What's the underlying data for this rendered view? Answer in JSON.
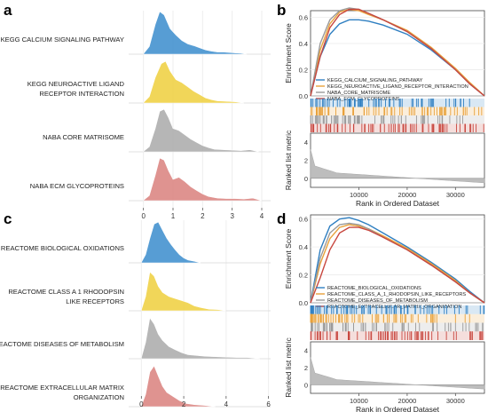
{
  "panels": {
    "a": {
      "label": "a"
    },
    "b": {
      "label": "b"
    },
    "c": {
      "label": "c"
    },
    "d": {
      "label": "d"
    }
  },
  "colors": {
    "blue": "#3a8ccd",
    "yellow": "#eecf3c",
    "gray": "#a9a9a9",
    "red": "#d9807d",
    "gsea_blue": "#2f7fc1",
    "gsea_orange": "#e8a13a",
    "gsea_gray": "#9a9a9a",
    "gsea_red": "#c8473f"
  },
  "chart_data": [
    {
      "panel": "a",
      "type": "area",
      "subtype": "ridgeline",
      "title": "",
      "xlabel": "",
      "xlim": [
        -0.5,
        4.3
      ],
      "xticks": [
        "0",
        "1",
        "2",
        "3",
        "4"
      ],
      "series": [
        {
          "name": "KEGG CALCIUM SIGNALING PATHWAY",
          "color": "#3a8ccd",
          "x": [
            0,
            0.2,
            0.4,
            0.55,
            0.7,
            0.9,
            1.1,
            1.3,
            1.5,
            1.7,
            1.9,
            2.1,
            2.3,
            2.5,
            2.7,
            2.9,
            3.1,
            3.3,
            3.5
          ],
          "density": [
            0.01,
            0.18,
            0.7,
            1.0,
            0.92,
            0.6,
            0.45,
            0.32,
            0.24,
            0.2,
            0.15,
            0.1,
            0.07,
            0.05,
            0.05,
            0.04,
            0.03,
            0.02,
            0.0
          ]
        },
        {
          "name": "KEGG NEUROACTIVE LIGAND RECEPTOR INTERACTION",
          "color": "#eecf3c",
          "x": [
            0,
            0.2,
            0.4,
            0.6,
            0.75,
            0.9,
            1.1,
            1.3,
            1.5,
            1.7,
            1.9,
            2.1,
            2.3,
            2.5,
            2.8,
            3.1,
            3.4
          ],
          "density": [
            0.01,
            0.15,
            0.6,
            0.92,
            0.98,
            0.75,
            0.55,
            0.48,
            0.38,
            0.28,
            0.2,
            0.12,
            0.08,
            0.05,
            0.04,
            0.03,
            0.0
          ]
        },
        {
          "name": "NABA CORE MATRISOME",
          "color": "#a9a9a9",
          "x": [
            0,
            0.2,
            0.4,
            0.55,
            0.7,
            0.85,
            1.0,
            1.2,
            1.4,
            1.6,
            1.8,
            2.0,
            2.2,
            2.4,
            2.7,
            3.0,
            3.3,
            3.6,
            3.9
          ],
          "density": [
            0.01,
            0.12,
            0.55,
            0.95,
            1.0,
            0.8,
            0.55,
            0.5,
            0.4,
            0.3,
            0.22,
            0.15,
            0.1,
            0.06,
            0.05,
            0.04,
            0.03,
            0.05,
            0.0
          ]
        },
        {
          "name": "NABA ECM GLYCOPROTEINS",
          "color": "#d9807d",
          "x": [
            0,
            0.2,
            0.4,
            0.55,
            0.7,
            0.85,
            1.0,
            1.2,
            1.4,
            1.6,
            1.8,
            2.0,
            2.2,
            2.5,
            2.8,
            3.1,
            3.4,
            3.7,
            4.0
          ],
          "density": [
            0.01,
            0.12,
            0.6,
            1.0,
            0.95,
            0.7,
            0.5,
            0.55,
            0.45,
            0.33,
            0.24,
            0.16,
            0.1,
            0.06,
            0.05,
            0.05,
            0.04,
            0.06,
            0.0
          ]
        }
      ]
    },
    {
      "panel": "b",
      "type": "line",
      "subtype": "gsea-enrichment",
      "title": "",
      "xlabel": "Rank in Ordered Dataset",
      "ylabel_top": "Enrichment Score",
      "ylabel_bottom": "Ranked list metric",
      "xlim": [
        0,
        36000
      ],
      "xticks": [
        "10000",
        "20000",
        "30000"
      ],
      "ylim_top": [
        0.0,
        0.65
      ],
      "yticks_top": [
        "0.0",
        "0.2",
        "0.4",
        "0.6"
      ],
      "ylim_bottom": [
        -1,
        5
      ],
      "yticks_bottom": [
        "0",
        "2",
        "4"
      ],
      "series": [
        {
          "name": "KEGG_CALCIUM_SIGNALING_PATHWAY",
          "color": "#2f7fc1",
          "x": [
            0,
            2000,
            4000,
            6000,
            8000,
            10000,
            12000,
            15000,
            20000,
            25000,
            30000,
            33000,
            36000
          ],
          "y": [
            0,
            0.3,
            0.47,
            0.55,
            0.58,
            0.58,
            0.57,
            0.54,
            0.47,
            0.35,
            0.2,
            0.09,
            0.0
          ]
        },
        {
          "name": "KEGG_NEUROACTIVE_LIGAND_RECEPTOR_INTERACTION",
          "color": "#e8a13a",
          "x": [
            0,
            2000,
            4000,
            6000,
            8000,
            10000,
            12000,
            15000,
            20000,
            25000,
            30000,
            33000,
            36000
          ],
          "y": [
            0,
            0.35,
            0.55,
            0.64,
            0.66,
            0.65,
            0.62,
            0.58,
            0.5,
            0.37,
            0.21,
            0.1,
            0.0
          ]
        },
        {
          "name": "NABA_CORE_MATRISOME",
          "color": "#9a9a9a",
          "x": [
            0,
            2000,
            4000,
            6000,
            8000,
            10000,
            12000,
            15000,
            20000,
            25000,
            30000,
            33000,
            36000
          ],
          "y": [
            0,
            0.4,
            0.58,
            0.65,
            0.67,
            0.66,
            0.63,
            0.58,
            0.49,
            0.36,
            0.2,
            0.09,
            0.0
          ]
        },
        {
          "name": "NABA_ECM_GLYCOPROTEINS",
          "color": "#c8473f",
          "x": [
            0,
            2000,
            4000,
            6000,
            8000,
            10000,
            12000,
            15000,
            20000,
            25000,
            30000,
            33000,
            36000
          ],
          "y": [
            0,
            0.3,
            0.52,
            0.62,
            0.66,
            0.66,
            0.63,
            0.58,
            0.49,
            0.36,
            0.2,
            0.09,
            0.0
          ]
        }
      ]
    },
    {
      "panel": "c",
      "type": "area",
      "subtype": "ridgeline",
      "title": "",
      "xlabel": "",
      "xlim": [
        -0.6,
        6.1
      ],
      "xticks": [
        "0",
        "2",
        "4",
        "6"
      ],
      "series": [
        {
          "name": "REACTOME BIOLOGICAL OXIDATIONS",
          "color": "#3a8ccd",
          "x": [
            0,
            0.2,
            0.4,
            0.6,
            0.8,
            1.0,
            1.2,
            1.4,
            1.6,
            1.8,
            2.0,
            2.2,
            2.5,
            2.8
          ],
          "density": [
            0.01,
            0.2,
            0.6,
            0.95,
            1.0,
            0.8,
            0.6,
            0.45,
            0.32,
            0.2,
            0.12,
            0.07,
            0.04,
            0.0
          ]
        },
        {
          "name": "REACTOME CLASS A 1 RHODOPSIN LIKE RECEPTORS",
          "color": "#eecf3c",
          "x": [
            0,
            0.2,
            0.4,
            0.6,
            0.8,
            1.0,
            1.3,
            1.6,
            1.9,
            2.2,
            2.5,
            2.8,
            3.2,
            3.6,
            4.0
          ],
          "density": [
            0.02,
            0.35,
            0.95,
            0.85,
            0.6,
            0.45,
            0.35,
            0.3,
            0.25,
            0.2,
            0.12,
            0.08,
            0.04,
            0.03,
            0.0
          ]
        },
        {
          "name": "REACTOME DISEASES OF METABOLISM",
          "color": "#a9a9a9",
          "x": [
            0,
            0.2,
            0.4,
            0.6,
            0.8,
            1.0,
            1.3,
            1.6,
            1.9,
            2.2,
            2.6,
            3.0,
            3.5,
            4.0,
            4.5,
            5.0,
            5.6
          ],
          "density": [
            0.02,
            0.4,
            1.0,
            0.85,
            0.6,
            0.45,
            0.3,
            0.22,
            0.15,
            0.1,
            0.08,
            0.06,
            0.05,
            0.04,
            0.03,
            0.03,
            0.0
          ]
        },
        {
          "name": "REACTOME EXTRACELLULAR MATRIX ORGANIZATION",
          "color": "#d9807d",
          "x": [
            0,
            0.2,
            0.4,
            0.6,
            0.8,
            1.0,
            1.2,
            1.5,
            1.8,
            2.1,
            2.5,
            3.0,
            3.5
          ],
          "density": [
            0.02,
            0.3,
            0.85,
            1.0,
            0.75,
            0.5,
            0.35,
            0.25,
            0.15,
            0.08,
            0.05,
            0.03,
            0.0
          ]
        }
      ]
    },
    {
      "panel": "d",
      "type": "line",
      "subtype": "gsea-enrichment",
      "title": "",
      "xlabel": "Rank in Ordered Dataset",
      "ylabel_top": "Enrichment Score",
      "ylabel_bottom": "Ranked list metric",
      "xlim": [
        0,
        36000
      ],
      "xticks": [
        "10000",
        "20000",
        "30000"
      ],
      "ylim_top": [
        0.0,
        0.63
      ],
      "yticks_top": [
        "0.0",
        "0.2",
        "0.4",
        "0.6"
      ],
      "ylim_bottom": [
        -1,
        5
      ],
      "yticks_bottom": [
        "0",
        "2",
        "4"
      ],
      "series": [
        {
          "name": "REACTOME_BIOLOGICAL_OXIDATIONS",
          "color": "#2f7fc1",
          "x": [
            0,
            2000,
            4000,
            6000,
            8000,
            10000,
            12000,
            15000,
            20000,
            25000,
            30000,
            33000,
            36000
          ],
          "y": [
            0,
            0.38,
            0.55,
            0.6,
            0.61,
            0.59,
            0.56,
            0.5,
            0.4,
            0.29,
            0.17,
            0.08,
            0.0
          ]
        },
        {
          "name": "REACTOME_CLASS_A_1_RHODOPSIN_LIKE_RECEPTORS",
          "color": "#e8a13a",
          "x": [
            0,
            2000,
            4000,
            6000,
            8000,
            10000,
            12000,
            15000,
            20000,
            25000,
            30000,
            33000,
            36000
          ],
          "y": [
            0,
            0.28,
            0.46,
            0.54,
            0.56,
            0.55,
            0.53,
            0.48,
            0.39,
            0.28,
            0.16,
            0.07,
            0.0
          ]
        },
        {
          "name": "REACTOME_DISEASES_OF_METABOLISM",
          "color": "#9a9a9a",
          "x": [
            0,
            2000,
            4000,
            6000,
            8000,
            10000,
            12000,
            15000,
            20000,
            25000,
            30000,
            33000,
            36000
          ],
          "y": [
            0,
            0.32,
            0.5,
            0.56,
            0.57,
            0.56,
            0.53,
            0.47,
            0.38,
            0.27,
            0.15,
            0.07,
            0.0
          ]
        },
        {
          "name": "REACTOME_EXTRACELLULAR_MATRIX_ORGANIZATION",
          "color": "#c8473f",
          "x": [
            0,
            2000,
            4000,
            6000,
            8000,
            10000,
            12000,
            15000,
            20000,
            25000,
            30000,
            33000,
            36000
          ],
          "y": [
            0,
            0.18,
            0.38,
            0.5,
            0.54,
            0.54,
            0.52,
            0.47,
            0.38,
            0.27,
            0.15,
            0.07,
            0.0
          ]
        }
      ]
    }
  ]
}
